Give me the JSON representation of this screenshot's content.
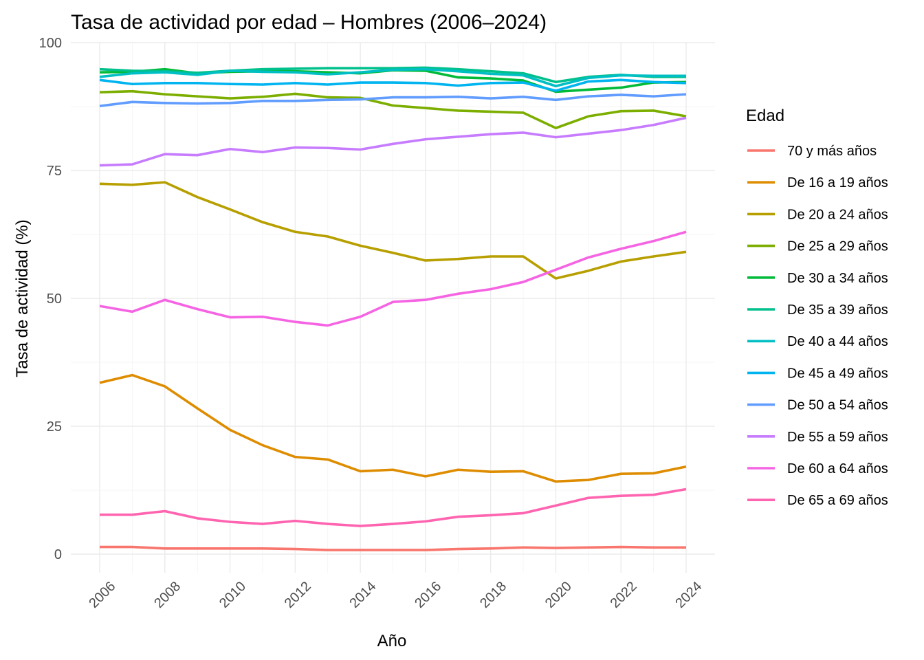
{
  "chart_data": {
    "type": "line",
    "title": "Tasa de actividad por edad – Hombres (2006–2024)",
    "xlabel": "Año",
    "ylabel": "Tasa de actividad (%)",
    "xlim": [
      2006,
      2024
    ],
    "ylim": [
      0,
      100
    ],
    "x_ticks": [
      2006,
      2008,
      2010,
      2012,
      2014,
      2016,
      2018,
      2020,
      2022,
      2024
    ],
    "y_ticks": [
      0,
      25,
      50,
      75,
      100
    ],
    "grid": true,
    "legend": {
      "title": "Edad",
      "placement": "right"
    },
    "x": [
      2006,
      2007,
      2008,
      2009,
      2010,
      2011,
      2012,
      2013,
      2014,
      2015,
      2016,
      2017,
      2018,
      2019,
      2020,
      2021,
      2022,
      2023,
      2024
    ],
    "series": [
      {
        "name": "70 y más años",
        "color": "#F8766D",
        "values": [
          1.4,
          1.4,
          1.1,
          1.1,
          1.1,
          1.1,
          1.0,
          0.8,
          0.8,
          0.8,
          0.8,
          1.0,
          1.1,
          1.3,
          1.2,
          1.3,
          1.4,
          1.3,
          1.3
        ]
      },
      {
        "name": "De 16 a 19 años",
        "color": "#DE8C00",
        "values": [
          33.5,
          35.0,
          32.8,
          28.5,
          24.3,
          21.3,
          19.0,
          18.5,
          16.2,
          16.5,
          15.2,
          16.5,
          16.1,
          16.2,
          14.2,
          14.5,
          15.7,
          15.8,
          17.1
        ]
      },
      {
        "name": "De 20 a 24 años",
        "color": "#B79F00",
        "values": [
          72.4,
          72.2,
          72.7,
          69.8,
          67.4,
          64.9,
          63.0,
          62.1,
          60.3,
          58.9,
          57.4,
          57.7,
          58.2,
          58.2,
          53.9,
          55.4,
          57.2,
          58.2,
          59.1
        ]
      },
      {
        "name": "De 25 a 29 años",
        "color": "#7CAE00",
        "values": [
          90.3,
          90.5,
          89.9,
          89.5,
          89.1,
          89.4,
          90.0,
          89.3,
          89.2,
          87.7,
          87.2,
          86.7,
          86.5,
          86.3,
          83.3,
          85.6,
          86.6,
          86.7,
          85.6
        ]
      },
      {
        "name": "De 30 a 34 años",
        "color": "#00BA38",
        "values": [
          94.2,
          94.3,
          94.8,
          94.0,
          94.3,
          94.4,
          94.4,
          94.2,
          94.0,
          94.6,
          94.5,
          93.2,
          93.0,
          92.6,
          90.4,
          90.8,
          91.2,
          92.2,
          92.3
        ]
      },
      {
        "name": "De 35 a 39 años",
        "color": "#00C08B",
        "values": [
          94.8,
          94.5,
          94.4,
          94.1,
          94.5,
          94.8,
          94.9,
          95.0,
          95.0,
          95.0,
          95.1,
          94.8,
          94.4,
          94.0,
          92.3,
          93.3,
          93.7,
          93.3,
          93.3
        ]
      },
      {
        "name": "De 40 a 44 años",
        "color": "#00BFC4",
        "values": [
          93.3,
          94.0,
          94.2,
          93.7,
          94.5,
          94.3,
          94.2,
          93.8,
          94.2,
          94.7,
          94.8,
          94.4,
          93.9,
          93.6,
          91.5,
          93.1,
          93.6,
          93.5,
          93.5
        ]
      },
      {
        "name": "De 45 a 49 años",
        "color": "#00B4F0",
        "values": [
          92.7,
          91.9,
          92.1,
          92.1,
          91.9,
          91.8,
          92.1,
          91.8,
          92.2,
          92.2,
          92.1,
          91.6,
          92.1,
          92.2,
          90.6,
          92.4,
          92.7,
          92.3,
          92.1
        ]
      },
      {
        "name": "De 50 a 54 años",
        "color": "#619CFF",
        "values": [
          87.6,
          88.4,
          88.2,
          88.1,
          88.2,
          88.6,
          88.6,
          88.8,
          88.9,
          89.3,
          89.3,
          89.4,
          89.1,
          89.4,
          88.8,
          89.5,
          89.8,
          89.5,
          89.9
        ]
      },
      {
        "name": "De 55 a 59 años",
        "color": "#C77CFF",
        "values": [
          76.0,
          76.2,
          78.2,
          78.0,
          79.2,
          78.6,
          79.5,
          79.4,
          79.1,
          80.2,
          81.1,
          81.6,
          82.1,
          82.4,
          81.5,
          82.2,
          82.9,
          83.9,
          85.3
        ]
      },
      {
        "name": "De 60 a 64 años",
        "color": "#F564E3",
        "values": [
          48.5,
          47.4,
          49.7,
          47.9,
          46.3,
          46.4,
          45.4,
          44.7,
          46.4,
          49.3,
          49.7,
          50.9,
          51.8,
          53.2,
          55.6,
          58.0,
          59.7,
          61.2,
          63.0
        ]
      },
      {
        "name": "De 65 a 69 años",
        "color": "#FF64B0",
        "values": [
          7.7,
          7.7,
          8.4,
          7.0,
          6.3,
          5.9,
          6.5,
          5.9,
          5.5,
          5.9,
          6.4,
          7.3,
          7.6,
          8.0,
          9.5,
          11.0,
          11.4,
          11.6,
          12.7
        ]
      }
    ]
  }
}
